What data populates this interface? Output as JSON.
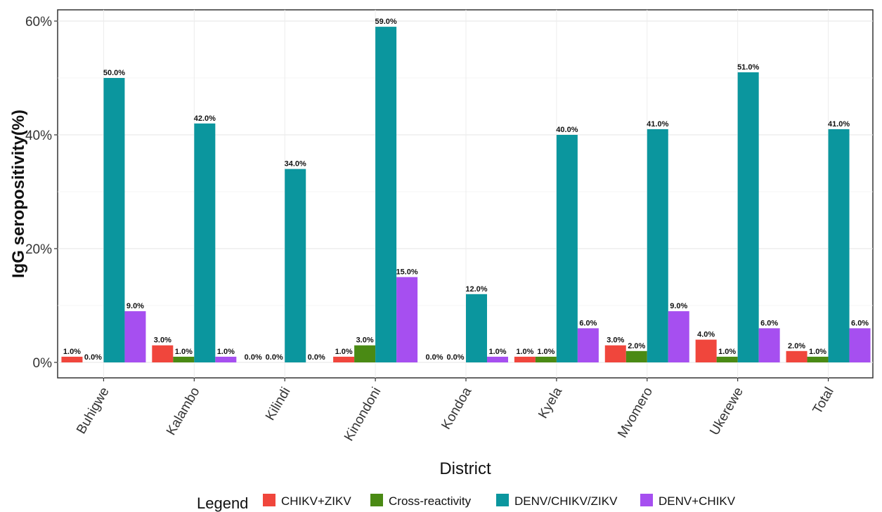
{
  "chart_data": {
    "type": "bar",
    "title": "",
    "xlabel": "District",
    "ylabel": "IgG seropositivity(%)",
    "ylim": [
      0,
      62
    ],
    "yticks": [
      "0%",
      "20%",
      "40%",
      "60%"
    ],
    "ytick_values": [
      0,
      20,
      40,
      60
    ],
    "grid": true,
    "legend_title": "Legend",
    "legend_position": "bottom",
    "categories": [
      "Buhigwe",
      "Kalambo",
      "Kilindi",
      "Kinondoni",
      "Kondoa",
      "Kyela",
      "Mvomero",
      "Ukerewe",
      "Total"
    ],
    "series": [
      {
        "name": "CHIKV+ZIKV",
        "color": "#f0463c",
        "values": [
          1,
          3,
          0,
          1,
          0,
          1,
          3,
          4,
          2
        ],
        "labels": [
          "1.0%",
          "3.0%",
          "0.0%",
          "1.0%",
          "0.0%",
          "1.0%",
          "3.0%",
          "4.0%",
          "2.0%"
        ]
      },
      {
        "name": "Cross-reactivity",
        "color": "#4a8a14",
        "values": [
          0,
          1,
          0,
          3,
          0,
          1,
          2,
          1,
          1
        ],
        "labels": [
          "0.0%",
          "1.0%",
          "0.0%",
          "3.0%",
          "0.0%",
          "1.0%",
          "2.0%",
          "1.0%",
          "1.0%"
        ]
      },
      {
        "name": "DENV/CHIKV/ZIKV",
        "color": "#0b969e",
        "values": [
          50,
          42,
          34,
          59,
          12,
          40,
          41,
          51,
          41
        ],
        "labels": [
          "50.0%",
          "42.0%",
          "34.0%",
          "59.0%",
          "12.0%",
          "40.0%",
          "41.0%",
          "51.0%",
          "41.0%"
        ]
      },
      {
        "name": "DENV+CHIKV",
        "color": "#a64ff0",
        "values": [
          9,
          1,
          0,
          15,
          1,
          6,
          9,
          6,
          6
        ],
        "labels": [
          "9.0%",
          "1.0%",
          "0.0%",
          "15.0%",
          "1.0%",
          "6.0%",
          "9.0%",
          "6.0%",
          "6.0%"
        ]
      }
    ]
  }
}
